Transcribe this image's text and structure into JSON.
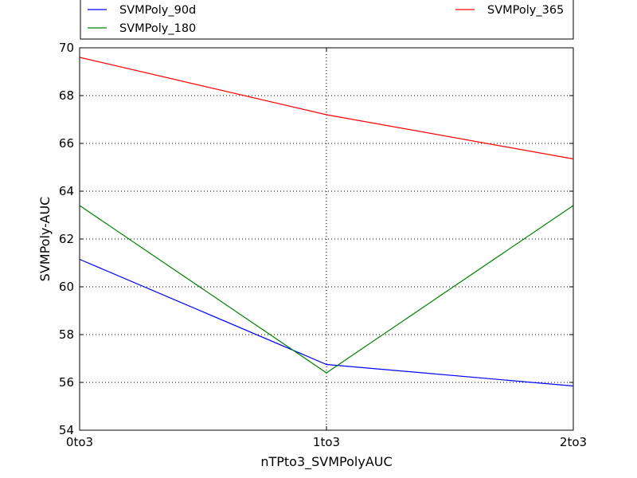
{
  "chart_data": {
    "type": "line",
    "title": "",
    "xlabel": "nTPto3_SVMPolyAUC",
    "ylabel": "SVMPoly-AUC",
    "categories": [
      "0to3",
      "1to3",
      "2to3"
    ],
    "ylim": [
      54,
      70
    ],
    "yticks": [
      54,
      56,
      58,
      60,
      62,
      64,
      66,
      68,
      70
    ],
    "grid": true,
    "legend_position": "top",
    "series": [
      {
        "name": "SVMPoly_90d",
        "color": "#0000ff",
        "values": [
          61.15,
          56.75,
          55.85
        ]
      },
      {
        "name": "SVMPoly_180",
        "color": "#008000",
        "values": [
          63.4,
          56.4,
          63.4
        ]
      },
      {
        "name": "SVMPoly_365",
        "color": "#ff0000",
        "values": [
          69.6,
          67.2,
          65.35
        ]
      }
    ]
  }
}
